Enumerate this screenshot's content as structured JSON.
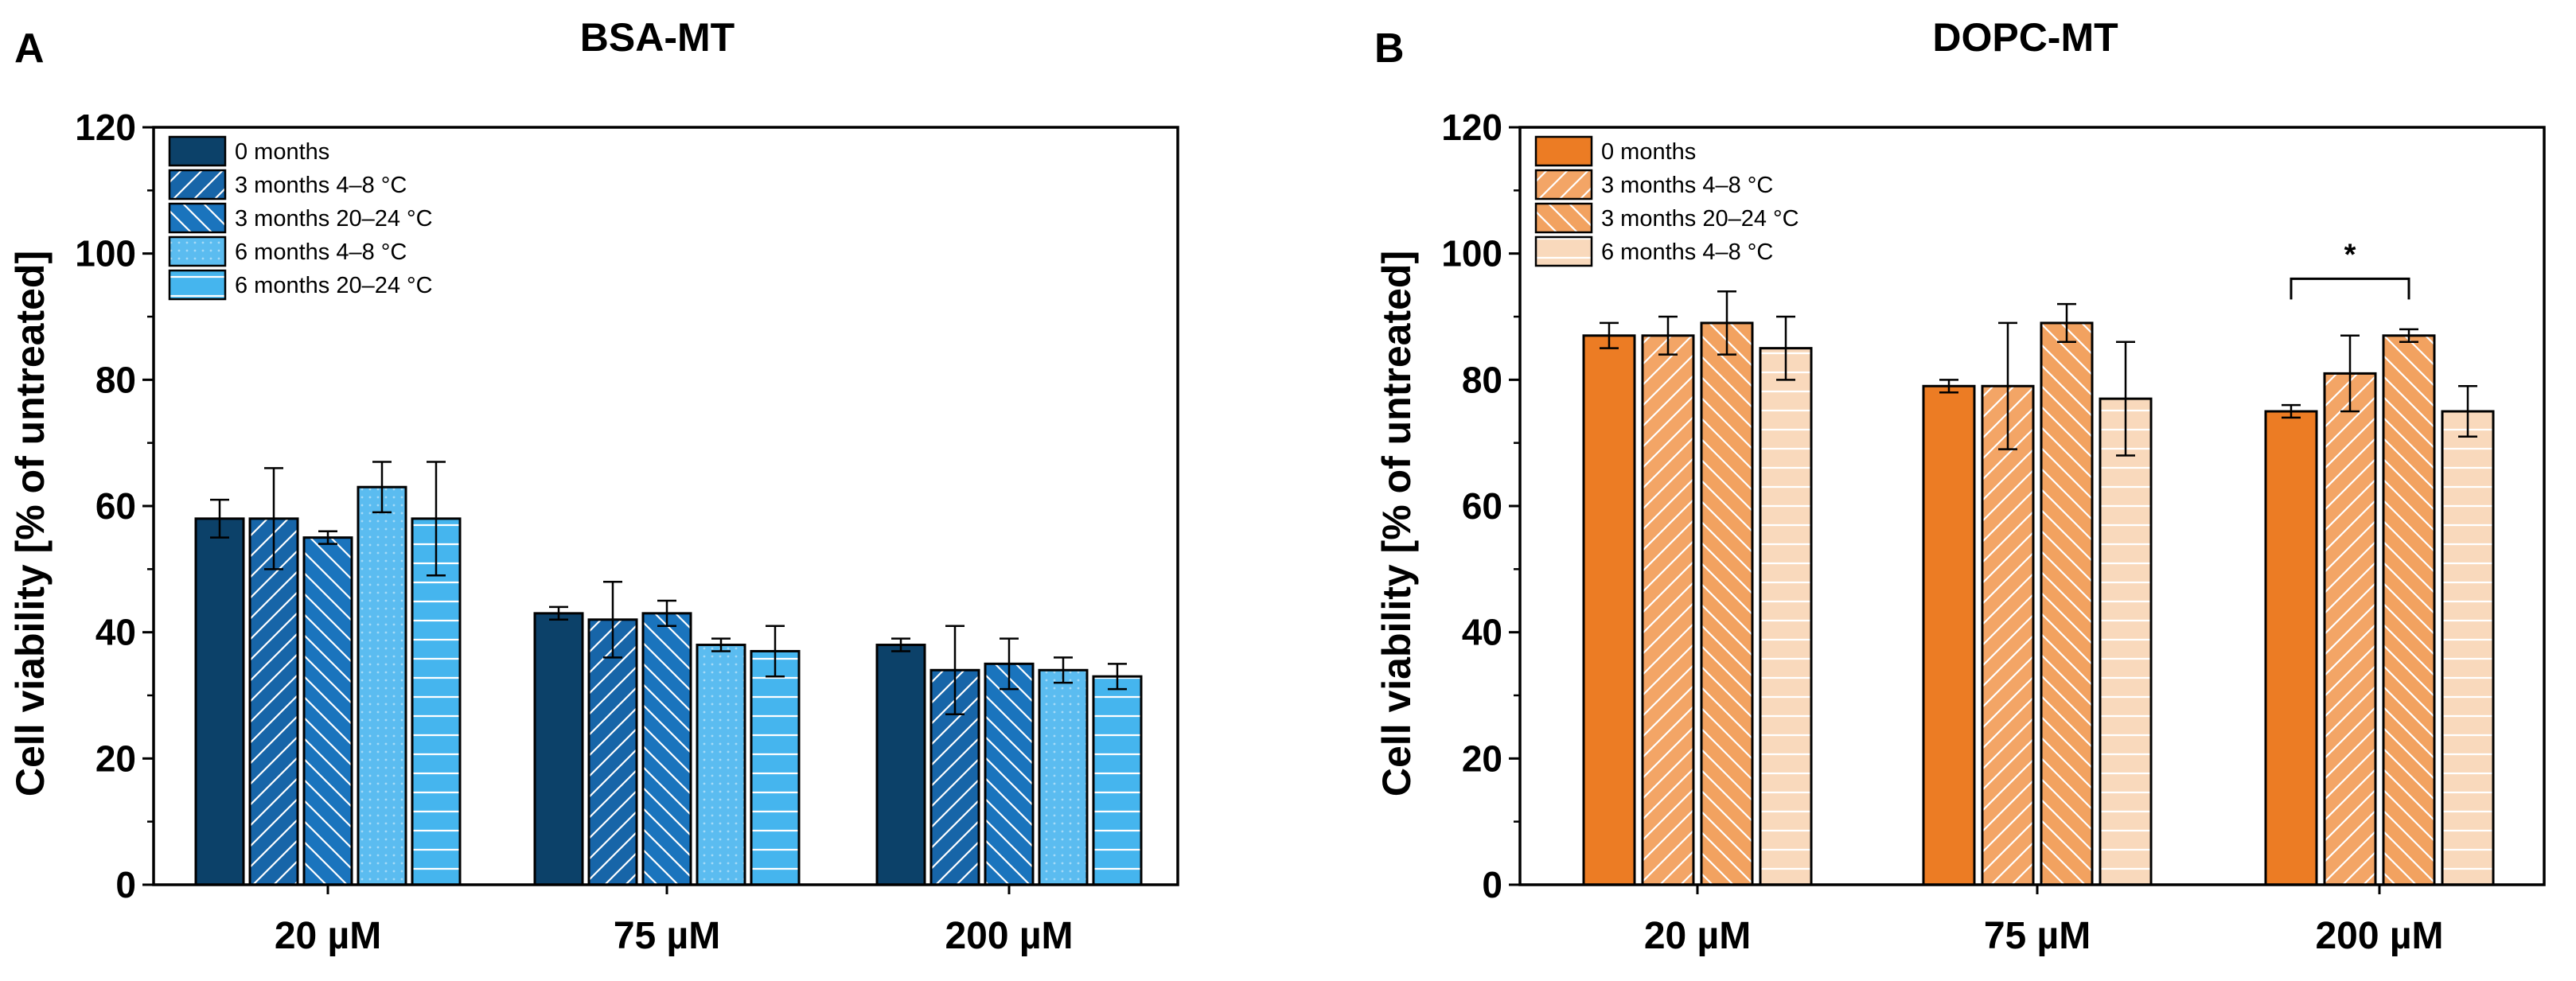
{
  "chart_data": [
    {
      "type": "bar",
      "panel_letter": "A",
      "title": "BSA-MT",
      "xlabel": "",
      "ylabel": "Cell viability [% of untreated]",
      "ylim": [
        0,
        120
      ],
      "yticks": [
        "0",
        "20",
        "40",
        "60",
        "80",
        "100",
        "120"
      ],
      "legend_position": "top-left",
      "categories": [
        "20 µM",
        "75 µM",
        "200 µM"
      ],
      "series": [
        {
          "name": "0 months",
          "color": "#0c4169",
          "pattern": "none",
          "values": [
            58,
            43,
            38
          ],
          "errors": [
            3,
            1,
            1
          ]
        },
        {
          "name": "3 months 4–8 °C",
          "color": "#1765a8",
          "pattern": "diag-up",
          "values": [
            58,
            42,
            34
          ],
          "errors": [
            8,
            6,
            7
          ]
        },
        {
          "name": "3 months 20–24 °C",
          "color": "#1a74bd",
          "pattern": "diag-down",
          "values": [
            55,
            43,
            35
          ],
          "errors": [
            1,
            2,
            4
          ]
        },
        {
          "name": "6 months 4–8 °C",
          "color": "#5bbcf0",
          "pattern": "dots",
          "values": [
            63,
            38,
            34
          ],
          "errors": [
            4,
            1,
            2
          ]
        },
        {
          "name": "6 months 20–24 °C",
          "color": "#45b5ee",
          "pattern": "horizontal",
          "values": [
            58,
            37,
            33
          ],
          "errors": [
            9,
            4,
            2
          ]
        }
      ],
      "annotations": []
    },
    {
      "type": "bar",
      "panel_letter": "B",
      "title": "DOPC-MT",
      "xlabel": "",
      "ylabel": "Cell viability [% of untreated]",
      "ylim": [
        0,
        120
      ],
      "yticks": [
        "0",
        "20",
        "40",
        "60",
        "80",
        "100",
        "120"
      ],
      "legend_position": "top-left",
      "categories": [
        "20 µM",
        "75 µM",
        "200 µM"
      ],
      "series": [
        {
          "name": "0 months",
          "color": "#ec7c24",
          "pattern": "none",
          "values": [
            87,
            79,
            75
          ],
          "errors": [
            2,
            1,
            1
          ]
        },
        {
          "name": "3 months 4–8 °C",
          "color": "#f3a566",
          "pattern": "diag-up",
          "values": [
            87,
            79,
            81
          ],
          "errors": [
            3,
            10,
            6
          ]
        },
        {
          "name": "3 months 20–24 °C",
          "color": "#f2a260",
          "pattern": "diag-down",
          "values": [
            89,
            89,
            87
          ],
          "errors": [
            5,
            3,
            1
          ]
        },
        {
          "name": "6 months 4–8 °C",
          "color": "#f9d9bc",
          "pattern": "horizontal",
          "values": [
            85,
            77,
            75
          ],
          "errors": [
            5,
            9,
            4
          ]
        }
      ],
      "annotations": [
        {
          "text": "*",
          "category": "200 µM",
          "from_series": 0,
          "to_series": 2,
          "y": 96
        }
      ]
    }
  ]
}
